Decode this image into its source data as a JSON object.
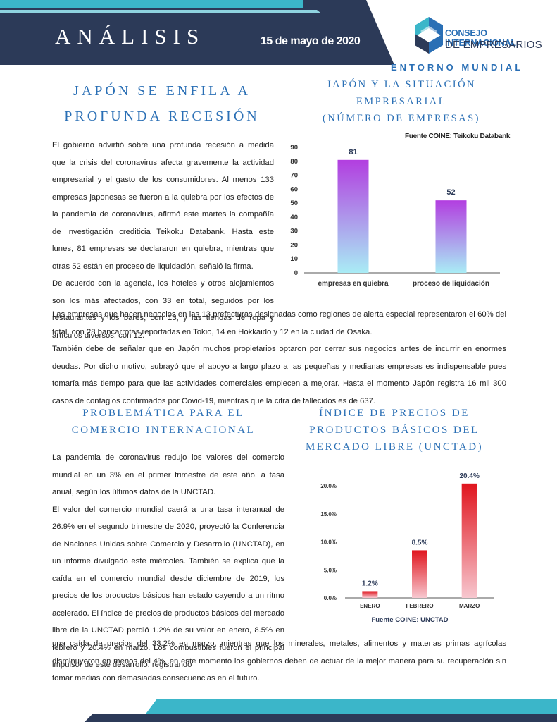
{
  "header": {
    "section_title": "ANÁLISIS",
    "date": "15 de mayo de 2020",
    "logo_line1": "CONSEJO INTERNACIONAL",
    "logo_line2": "DE EMPRESARIOS",
    "category": "ENTORNO MUNDIAL"
  },
  "article1": {
    "title_line1": "JAPÓN SE ENFILA A",
    "title_line2": "PROFUNDA RECESIÓN",
    "paragraphs_narrow": [
      "El gobierno advirtió sobre una profunda recesión a medida que la crisis del coronavirus afecta gravemente la actividad empresarial y el gasto de los consumidores. Al menos 133 empresas japonesas se fueron a la quiebra por los efectos de la pandemia de coronavirus, afirmó este martes la compañía de investigación crediticia Teikoku Databank. Hasta este lunes, 81 empresas se declararon en quiebra, mientras que otras 52 están en proceso de liquidación, señaló la firma.",
      "De acuerdo con la agencia, los hoteles y otros alojamientos son los más afectados, con 33 en total, seguidos por los restaurantes y los bares, con 13, y las tiendas de ropa y artículos diversos, con 12."
    ],
    "paragraphs_wide": [
      "  Las empresas que hacen negocios en las 13 prefecturas designadas como regiones de alerta especial representaron el 60%  del total, con 28 bancarrotas reportadas en Tokio, 14 en Hokkaido y 12 en la ciudad de Osaka.",
      "También debe de señalar que en Japón muchos propietarios optaron por cerrar sus negocios antes de incurrir en enormes deudas. Por dicho motivo, subrayó que el apoyo a largo plazo a las pequeñas y medianas empresas es indispensable pues tomaría más tiempo para que las actividades comerciales empiecen a mejorar. Hasta el momento Japón registra 16 mil 300 casos de contagios confirmados por Covid-19, mientras que la cifra de fallecidos es de 637."
    ]
  },
  "chart1_heading": {
    "line1": "JAPÓN Y LA SITUACIÓN",
    "line2": "EMPRESARIAL",
    "line3": "(NÚMERO DE EMPRESAS)"
  },
  "chart1_source": "Fuente COINE: Teikoku Databank",
  "article2": {
    "title_line1": "PROBLEMÁTICA PARA EL",
    "title_line2": "COMERCIO INTERNACIONAL",
    "paragraphs_narrow": [
      "La pandemia de coronavirus redujo los valores del comercio mundial en un 3% en el primer trimestre de este año, a tasa anual, según los últimos datos de la UNCTAD.",
      "El valor del comercio mundial caerá a una tasa interanual de 26.9% en el segundo trimestre de 2020, proyectó la Conferencia de Naciones Unidas sobre Comercio y Desarrollo (UNCTAD), en un informe divulgado este miércoles. También se explica que la caída en el comercio mundial  desde diciembre de 2019, los precios de los productos básicos han estado cayendo a un ritmo acelerado. El índice de precios de productos básicos del mercado libre de la UNCTAD perdió 1.2% de su valor en enero, 8.5% en febrero y 20.4% en marzo. Los combustibles fueron el principal impulsor de este desarrollo, registrando"
    ],
    "paragraph_wide": "una caída de precios del 33.2% en marzo, mientras que los minerales, metales, alimentos y materias primas agrícolas disminuyeron en menos del 4%, en este momento los gobiernos deben de actuar de la mejor manera para su recuperación sin tomar medias con demasiadas consecuencias en el futuro."
  },
  "chart2_heading": {
    "line1": "ÍNDICE DE PRECIOS DE",
    "line2": "PRODUCTOS BÁSICOS DEL",
    "line3": "MERCADO LIBRE (UNCTAD)"
  },
  "chart2_source": "Fuente COINE: UNCTAD",
  "colors": {
    "navy": "#2c3a58",
    "teal": "#3bb6c9",
    "heading_blue": "#2a6fb5",
    "bar1_top": "#b23ee0",
    "bar1_bottom": "#a9ecf5",
    "bar2_top": "#e0151e",
    "bar2_bottom": "#f7c7cf"
  },
  "chart_data": [
    {
      "type": "bar",
      "categories": [
        "empresas en quiebra",
        "proceso de liquidación"
      ],
      "values": [
        81,
        52
      ],
      "data_labels": [
        "81",
        "52"
      ],
      "ylim": [
        0,
        90
      ],
      "yticks": [
        "0",
        "10",
        "20",
        "30",
        "40",
        "50",
        "60",
        "70",
        "80",
        "90"
      ],
      "grid": false
    },
    {
      "type": "bar",
      "categories": [
        "ENERO",
        "FEBRERO",
        "MARZO"
      ],
      "values": [
        1.2,
        8.5,
        20.4
      ],
      "data_labels": [
        "1.2%",
        "8.5%",
        "20.4%"
      ],
      "ylim": [
        0,
        20
      ],
      "yticks": [
        "0.0%",
        "5.0%",
        "10.0%",
        "15.0%",
        "20.0%"
      ],
      "grid": false
    }
  ]
}
